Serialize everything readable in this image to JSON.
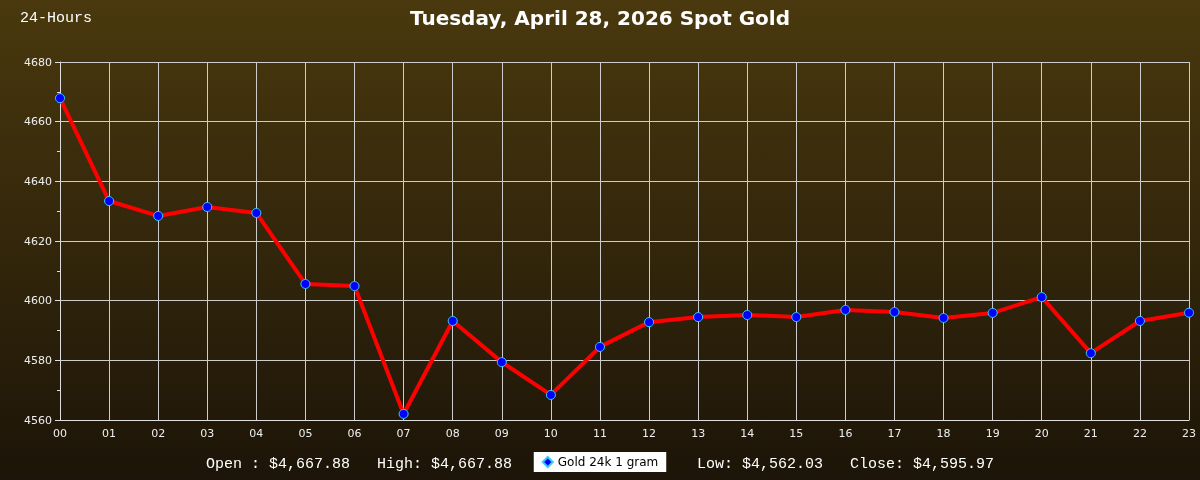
{
  "chart_data": {
    "type": "line",
    "title": "Tuesday, April 28, 2026 Spot Gold",
    "annotations": [
      "24-Hours",
      "Open : $4,667.88",
      "High: $4,667.88",
      "Low: $4,562.03",
      "Close: $4,595.97"
    ],
    "categories": [
      "00",
      "01",
      "02",
      "03",
      "04",
      "05",
      "06",
      "07",
      "08",
      "09",
      "10",
      "11",
      "12",
      "13",
      "14",
      "15",
      "16",
      "17",
      "18",
      "19",
      "20",
      "21",
      "22",
      "23"
    ],
    "series": [
      {
        "name": "Gold 24k 1 gram",
        "color": "#ff0000",
        "colors": [
          "#0000ff",
          "#0000ff",
          "#0000ff",
          "#0000ff",
          "#0000ff",
          "#0000ff",
          "#0000ff",
          "#0000ff",
          "#0000ff",
          "#0000ff",
          "#0000ff",
          "#0000ff",
          "#0000ff",
          "#0000ff",
          "#0000ff",
          "#0000ff",
          "#0000ff",
          "#0000ff",
          "#0000ff",
          "#0000ff",
          "#0000ff",
          "#0000ff",
          "#0000ff",
          "#0000ff"
        ],
        "values": [
          4667.88,
          4633.4,
          4628.4,
          4631.4,
          4629.4,
          4605.6,
          4604.9,
          4562.03,
          4593.2,
          4579.4,
          4568.4,
          4584.5,
          4592.8,
          4594.5,
          4595.2,
          4594.5,
          4596.9,
          4596.2,
          4594.2,
          4595.9,
          4601.2,
          4582.4,
          4593.2,
          4595.97
        ]
      }
    ],
    "ylim": [
      4560,
      4680
    ],
    "yticks": [
      4560,
      4580,
      4600,
      4620,
      4640,
      4660,
      4680
    ],
    "grid": true,
    "legend": "bottom",
    "marker": "circle",
    "line_style": "solid"
  }
}
